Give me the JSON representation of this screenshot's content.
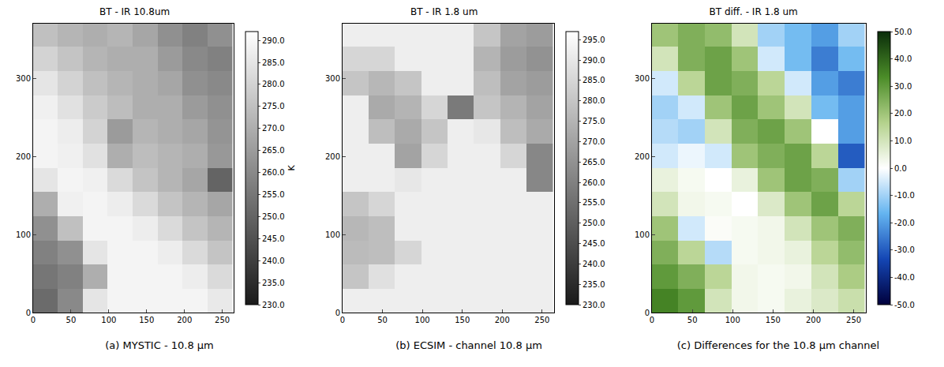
{
  "chart_data": [
    {
      "type": "heatmap",
      "title": "BT - IR 10.8um",
      "caption": "(a) MYSTIC - 10.8 μm",
      "x": [
        16,
        49,
        82,
        115,
        148,
        181,
        214,
        247
      ],
      "y": [
        15,
        46,
        77,
        108,
        139,
        170,
        201,
        232,
        263,
        294,
        325,
        356
      ],
      "values": [
        [
          252,
          260,
          285,
          289,
          289,
          289,
          289,
          286
        ],
        [
          255,
          258,
          270,
          289,
          289,
          289,
          287,
          282
        ],
        [
          258,
          262,
          285,
          289,
          289,
          287,
          282,
          276
        ],
        [
          262,
          275,
          289,
          289,
          287,
          282,
          276,
          272
        ],
        [
          270,
          288,
          289,
          287,
          282,
          276,
          272,
          268
        ],
        [
          285,
          289,
          288,
          282,
          276,
          272,
          268,
          250
        ],
        [
          289,
          288,
          284,
          270,
          274,
          272,
          270,
          264
        ],
        [
          289,
          287,
          280,
          265,
          272,
          270,
          268,
          263
        ],
        [
          288,
          284,
          278,
          274,
          270,
          270,
          265,
          262
        ],
        [
          285,
          280,
          275,
          272,
          270,
          268,
          262,
          260
        ],
        [
          280,
          276,
          272,
          270,
          270,
          265,
          260,
          258
        ],
        [
          275,
          272,
          270,
          272,
          268,
          262,
          258,
          262
        ]
      ],
      "xlim": [
        0,
        265
      ],
      "ylim": [
        0,
        370
      ],
      "xticks": [
        0,
        50,
        100,
        150,
        200,
        250
      ],
      "yticks": [
        0,
        100,
        200,
        300
      ],
      "colorbar": {
        "range": [
          230,
          292
        ],
        "label": "K",
        "colors": [
          "#1a1a1a",
          "#ffffff"
        ],
        "ticks": [
          {
            "value": 230,
            "label": "230.0"
          },
          {
            "value": 235,
            "label": "235.0"
          },
          {
            "value": 240,
            "label": "240.0"
          },
          {
            "value": 245,
            "label": "245.0"
          },
          {
            "value": 250,
            "label": "250.0"
          },
          {
            "value": 255,
            "label": "255.0"
          },
          {
            "value": 260,
            "label": "260.0"
          },
          {
            "value": 265,
            "label": "265.0"
          },
          {
            "value": 270,
            "label": "270.0"
          },
          {
            "value": 275,
            "label": "275.0"
          },
          {
            "value": 280,
            "label": "280.0"
          },
          {
            "value": 285,
            "label": "285.0"
          },
          {
            "value": 290,
            "label": "290.0"
          }
        ]
      }
    },
    {
      "type": "heatmap",
      "title": "BT - IR 1.8 um",
      "caption": "(b) ECSIM - channel 10.8 μm",
      "x": [
        16,
        49,
        82,
        115,
        148,
        181,
        214,
        247
      ],
      "y": [
        15,
        46,
        77,
        108,
        139,
        170,
        201,
        232,
        263,
        294,
        325,
        356
      ],
      "values": [
        [
          292,
          292,
          292,
          292,
          292,
          292,
          292,
          292
        ],
        [
          280,
          288,
          292,
          292,
          292,
          292,
          292,
          292
        ],
        [
          277,
          278,
          285,
          292,
          292,
          292,
          292,
          292
        ],
        [
          276,
          278,
          292,
          292,
          292,
          292,
          292,
          292
        ],
        [
          280,
          285,
          292,
          292,
          292,
          292,
          292,
          292
        ],
        [
          292,
          292,
          290,
          292,
          292,
          292,
          292,
          262
        ],
        [
          292,
          292,
          270,
          285,
          292,
          292,
          285,
          262
        ],
        [
          292,
          278,
          272,
          280,
          292,
          290,
          278,
          272
        ],
        [
          292,
          272,
          275,
          285,
          258,
          280,
          275,
          270
        ],
        [
          280,
          276,
          280,
          292,
          292,
          278,
          270,
          268
        ],
        [
          285,
          285,
          292,
          292,
          292,
          275,
          268,
          265
        ],
        [
          292,
          292,
          292,
          292,
          292,
          280,
          270,
          268
        ]
      ],
      "xlim": [
        0,
        265
      ],
      "ylim": [
        0,
        370
      ],
      "xticks": [
        0,
        50,
        100,
        150,
        200,
        250
      ],
      "yticks": [
        0,
        100,
        200,
        300
      ],
      "colorbar": {
        "range": [
          230,
          297
        ],
        "colors": [
          "#1a1a1a",
          "#ffffff"
        ],
        "ticks": [
          {
            "value": 230,
            "label": "230.0"
          },
          {
            "value": 235,
            "label": "235.0"
          },
          {
            "value": 240,
            "label": "240.0"
          },
          {
            "value": 245,
            "label": "245.0"
          },
          {
            "value": 250,
            "label": "250.0"
          },
          {
            "value": 255,
            "label": "255.0"
          },
          {
            "value": 260,
            "label": "260.0"
          },
          {
            "value": 265,
            "label": "265.0"
          },
          {
            "value": 270,
            "label": "270.0"
          },
          {
            "value": 275,
            "label": "275.0"
          },
          {
            "value": 280,
            "label": "280.0"
          },
          {
            "value": 285,
            "label": "285.0"
          },
          {
            "value": 290,
            "label": "290.0"
          },
          {
            "value": 295,
            "label": "295.0"
          }
        ]
      }
    },
    {
      "type": "heatmap",
      "title": "BT diff. - IR 1.8 um",
      "caption": "(c) Differences for the 10.8 μm channel",
      "x": [
        16,
        49,
        82,
        115,
        148,
        181,
        214,
        247
      ],
      "y": [
        15,
        46,
        77,
        108,
        139,
        170,
        201,
        232,
        263,
        294,
        325,
        356
      ],
      "values": [
        [
          35,
          30,
          10,
          3,
          2,
          5,
          8,
          12
        ],
        [
          30,
          25,
          15,
          3,
          2,
          3,
          10,
          18
        ],
        [
          25,
          15,
          -8,
          2,
          3,
          5,
          15,
          22
        ],
        [
          20,
          -5,
          1,
          2,
          3,
          10,
          20,
          25
        ],
        [
          10,
          3,
          2,
          0,
          8,
          20,
          28,
          15
        ],
        [
          5,
          2,
          0,
          5,
          20,
          28,
          25,
          -10
        ],
        [
          -5,
          -2,
          -5,
          20,
          25,
          28,
          15,
          -30
        ],
        [
          -8,
          -10,
          10,
          25,
          28,
          20,
          0,
          -20
        ],
        [
          -10,
          -5,
          20,
          28,
          20,
          10,
          -15,
          -20
        ],
        [
          -5,
          15,
          28,
          25,
          15,
          -5,
          -20,
          -25
        ],
        [
          10,
          25,
          28,
          20,
          -5,
          -15,
          -25,
          -15
        ],
        [
          20,
          25,
          22,
          10,
          -10,
          -15,
          -20,
          -10
        ]
      ],
      "xlim": [
        0,
        265
      ],
      "ylim": [
        0,
        370
      ],
      "xticks": [
        0,
        50,
        100,
        150,
        200,
        250
      ],
      "yticks": [
        0,
        100,
        200,
        300
      ],
      "colorbar": {
        "range": [
          -50,
          50
        ],
        "colors": [
          "#00003c",
          "#1446b4",
          "#64b4f0",
          "#ffffff",
          "#b4d28c",
          "#4b8c28",
          "#0a2d0a"
        ],
        "ticks": [
          {
            "value": -50,
            "label": "-50.0"
          },
          {
            "value": -40,
            "label": "-40.0"
          },
          {
            "value": -30,
            "label": "-30.0"
          },
          {
            "value": -20,
            "label": "-20.0"
          },
          {
            "value": -10,
            "label": "-10.0"
          },
          {
            "value": 0,
            "label": "0.0"
          },
          {
            "value": 10,
            "label": "10.0"
          },
          {
            "value": 20,
            "label": "20.0"
          },
          {
            "value": 30,
            "label": "30.0"
          },
          {
            "value": 40,
            "label": "40.0"
          },
          {
            "value": 50,
            "label": "50.0"
          }
        ]
      }
    }
  ]
}
